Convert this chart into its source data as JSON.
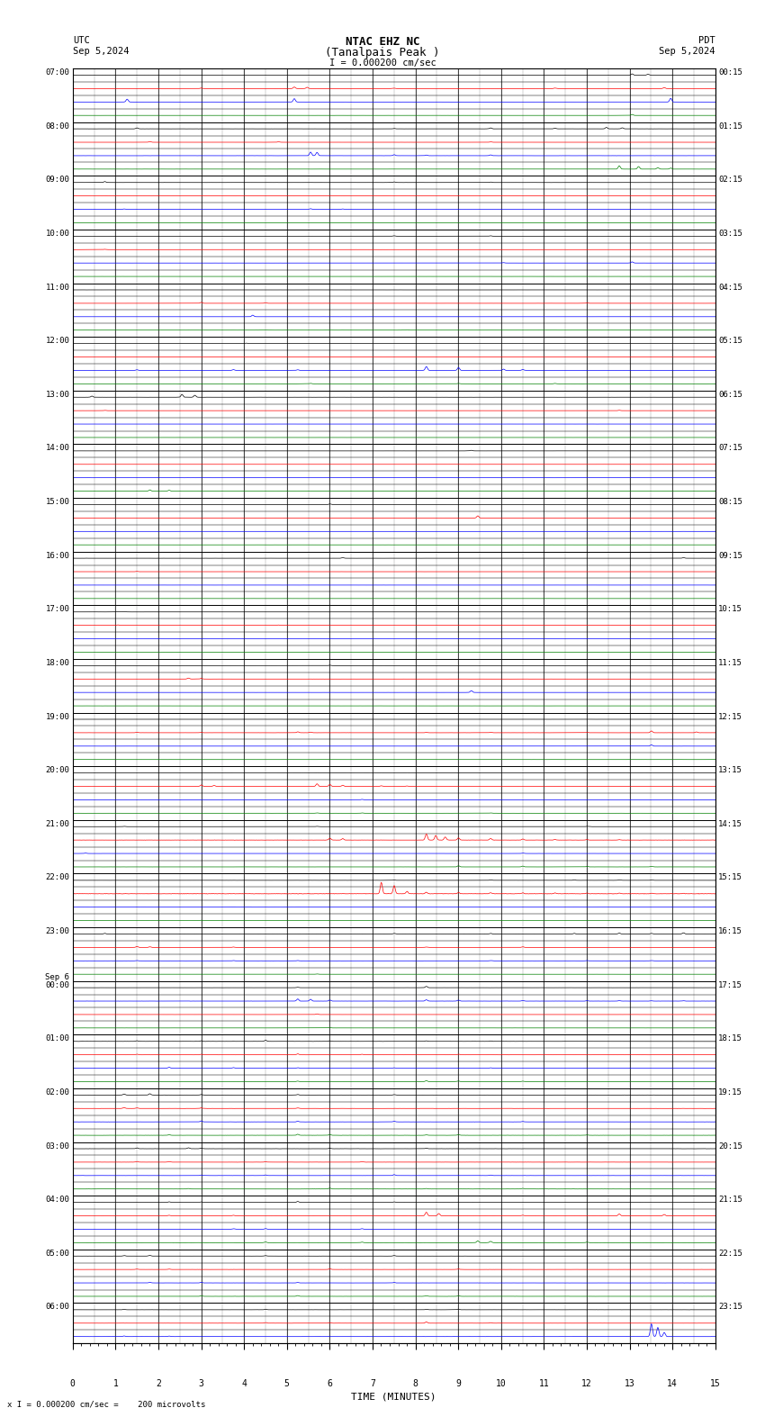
{
  "title_line1": "NTAC EHZ NC",
  "title_line2": "(Tanalpais Peak )",
  "scale_label": "I = 0.000200 cm/sec",
  "utc_label": "UTC",
  "utc_date": "Sep 5,2024",
  "pdt_label": "PDT",
  "pdt_date": "Sep 5,2024",
  "bottom_label": "x I = 0.000200 cm/sec =    200 microvolts",
  "xlabel": "TIME (MINUTES)",
  "background_color": "#ffffff",
  "line_color_black": "#000000",
  "line_color_red": "#ff0000",
  "line_color_blue": "#0000ff",
  "line_color_green": "#008000",
  "fig_width": 8.5,
  "fig_height": 15.84,
  "left_labels": [
    "07:00",
    "",
    "",
    "",
    "08:00",
    "",
    "",
    "",
    "09:00",
    "",
    "",
    "",
    "10:00",
    "",
    "",
    "",
    "11:00",
    "",
    "",
    "",
    "12:00",
    "",
    "",
    "",
    "13:00",
    "",
    "",
    "",
    "14:00",
    "",
    "",
    "",
    "15:00",
    "",
    "",
    "",
    "16:00",
    "",
    "",
    "",
    "17:00",
    "",
    "",
    "",
    "18:00",
    "",
    "",
    "",
    "19:00",
    "",
    "",
    "",
    "20:00",
    "",
    "",
    "",
    "21:00",
    "",
    "",
    "",
    "22:00",
    "",
    "",
    "",
    "23:00",
    "",
    "",
    "",
    "Sep 6\n00:00",
    "",
    "",
    "",
    "01:00",
    "",
    "",
    "",
    "02:00",
    "",
    "",
    "",
    "03:00",
    "",
    "",
    "",
    "04:00",
    "",
    "",
    "",
    "05:00",
    "",
    "",
    "",
    "06:00",
    "",
    ""
  ],
  "right_labels": [
    "00:15",
    "",
    "",
    "",
    "01:15",
    "",
    "",
    "",
    "02:15",
    "",
    "",
    "",
    "03:15",
    "",
    "",
    "",
    "04:15",
    "",
    "",
    "",
    "05:15",
    "",
    "",
    "",
    "06:15",
    "",
    "",
    "",
    "07:15",
    "",
    "",
    "",
    "08:15",
    "",
    "",
    "",
    "09:15",
    "",
    "",
    "",
    "10:15",
    "",
    "",
    "",
    "11:15",
    "",
    "",
    "",
    "12:15",
    "",
    "",
    "",
    "13:15",
    "",
    "",
    "",
    "14:15",
    "",
    "",
    "",
    "15:15",
    "",
    "",
    "",
    "16:15",
    "",
    "",
    "",
    "17:15",
    "",
    "",
    "",
    "18:15",
    "",
    "",
    "",
    "19:15",
    "",
    "",
    "",
    "20:15",
    "",
    "",
    "",
    "21:15",
    "",
    "",
    "",
    "22:15",
    "",
    "",
    "",
    "23:15",
    "",
    ""
  ]
}
